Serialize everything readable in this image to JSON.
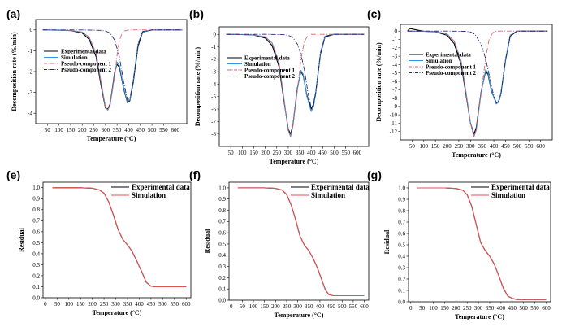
{
  "chart_data": [
    {
      "panel": "(a)",
      "type": "line",
      "xlabel": "Temperature (°C)",
      "ylabel": "Decomposition rate (%/min)",
      "xlim": [
        0,
        650
      ],
      "ylim": [
        -4.5,
        0.5
      ],
      "xticks": [
        50,
        100,
        150,
        200,
        250,
        300,
        350,
        400,
        450,
        500,
        550,
        600
      ],
      "yticks": [
        0,
        -1,
        -2,
        -3,
        -4
      ],
      "legend_position": "left",
      "series": [
        {
          "name": "Experimental data",
          "color": "#000000",
          "dash": "solid",
          "x": [
            30,
            100,
            150,
            200,
            230,
            260,
            280,
            300,
            310,
            320,
            340,
            350,
            360,
            380,
            395,
            405,
            420,
            440,
            460,
            500,
            600,
            630
          ],
          "y": [
            0,
            -0.01,
            -0.03,
            -0.15,
            -0.45,
            -1.3,
            -2.6,
            -3.75,
            -3.8,
            -3.55,
            -2.0,
            -1.65,
            -1.8,
            -2.9,
            -3.5,
            -3.4,
            -2.5,
            -0.8,
            -0.1,
            0,
            0,
            0
          ]
        },
        {
          "name": "Simulation",
          "color": "#3b8fd6",
          "dash": "solid",
          "x": [
            30,
            100,
            150,
            200,
            230,
            260,
            280,
            300,
            310,
            320,
            340,
            350,
            360,
            380,
            395,
            405,
            420,
            440,
            460,
            500,
            600,
            630
          ],
          "y": [
            0,
            -0.01,
            -0.03,
            -0.1,
            -0.35,
            -1.15,
            -2.45,
            -3.7,
            -3.85,
            -3.6,
            -2.1,
            -1.55,
            -1.7,
            -2.85,
            -3.45,
            -3.35,
            -2.4,
            -0.7,
            -0.08,
            0,
            0,
            0
          ]
        },
        {
          "name": "Pseudo-component 1",
          "color": "#e06666",
          "dash": "6,2,1,2",
          "x": [
            30,
            100,
            150,
            200,
            230,
            260,
            280,
            300,
            310,
            320,
            340,
            350,
            360,
            370,
            380,
            400,
            630
          ],
          "y": [
            0,
            -0.01,
            -0.03,
            -0.1,
            -0.35,
            -1.15,
            -2.45,
            -3.7,
            -3.85,
            -3.6,
            -2.2,
            -1.2,
            -0.5,
            -0.2,
            -0.05,
            0,
            0
          ]
        },
        {
          "name": "Pseudo-component 2",
          "color": "#1f2a7a",
          "dash": "6,2,1,2",
          "x": [
            30,
            200,
            280,
            300,
            320,
            340,
            350,
            360,
            380,
            395,
            405,
            420,
            440,
            460,
            500,
            630
          ],
          "y": [
            0,
            0,
            -0.02,
            -0.05,
            -0.15,
            -0.5,
            -0.9,
            -1.3,
            -2.6,
            -3.35,
            -3.3,
            -2.4,
            -0.7,
            -0.08,
            0,
            0
          ]
        }
      ]
    },
    {
      "panel": "(b)",
      "type": "line",
      "xlabel": "Temperature (°C)",
      "ylabel": "Decomposition rate (%/min)",
      "xlim": [
        0,
        650
      ],
      "ylim": [
        -9,
        0.6
      ],
      "xticks": [
        50,
        100,
        150,
        200,
        250,
        300,
        350,
        400,
        450,
        500,
        550,
        600
      ],
      "yticks": [
        0,
        -1,
        -2,
        -3,
        -4,
        -5,
        -6,
        -7,
        -8
      ],
      "legend_position": "left",
      "series": [
        {
          "name": "Experimental data",
          "color": "#000000",
          "dash": "solid",
          "x": [
            30,
            100,
            150,
            200,
            230,
            260,
            280,
            300,
            310,
            320,
            340,
            355,
            365,
            380,
            400,
            410,
            420,
            440,
            460,
            500,
            600,
            630
          ],
          "y": [
            0,
            -0.02,
            -0.06,
            -0.3,
            -0.9,
            -2.6,
            -5.2,
            -7.6,
            -8.0,
            -7.3,
            -4.3,
            -3.0,
            -3.3,
            -4.8,
            -6.0,
            -5.6,
            -4.6,
            -1.6,
            -0.2,
            0,
            0,
            0
          ]
        },
        {
          "name": "Simulation",
          "color": "#3b8fd6",
          "dash": "solid",
          "x": [
            30,
            100,
            150,
            200,
            230,
            260,
            280,
            300,
            310,
            320,
            340,
            355,
            365,
            380,
            400,
            410,
            420,
            440,
            460,
            500,
            600,
            630
          ],
          "y": [
            0,
            -0.02,
            -0.05,
            -0.2,
            -0.7,
            -2.3,
            -5.0,
            -7.7,
            -8.2,
            -7.4,
            -4.4,
            -2.9,
            -3.2,
            -4.9,
            -6.2,
            -5.8,
            -4.7,
            -1.5,
            -0.15,
            0,
            0,
            0
          ]
        },
        {
          "name": "Pseudo-component 1",
          "color": "#e06666",
          "dash": "6,2,1,2",
          "x": [
            30,
            100,
            150,
            200,
            230,
            260,
            280,
            300,
            310,
            320,
            340,
            355,
            370,
            385,
            400,
            630
          ],
          "y": [
            0,
            -0.02,
            -0.05,
            -0.2,
            -0.7,
            -2.3,
            -5.0,
            -7.7,
            -8.2,
            -7.4,
            -4.5,
            -2.0,
            -0.6,
            -0.1,
            0,
            0
          ]
        },
        {
          "name": "Pseudo-component 2",
          "color": "#1f2a7a",
          "dash": "6,2,1,2",
          "x": [
            30,
            200,
            280,
            300,
            320,
            340,
            355,
            370,
            385,
            400,
            410,
            420,
            440,
            460,
            500,
            630
          ],
          "y": [
            0,
            0,
            -0.03,
            -0.08,
            -0.25,
            -0.8,
            -1.6,
            -2.8,
            -4.6,
            -5.9,
            -5.7,
            -4.6,
            -1.5,
            -0.15,
            0,
            0
          ]
        }
      ]
    },
    {
      "panel": "(c)",
      "type": "line",
      "xlabel": "Temperature (°C)",
      "ylabel": "Decomposition rate (%/min)",
      "xlim": [
        0,
        650
      ],
      "ylim": [
        -13,
        0.8
      ],
      "xticks": [
        50,
        100,
        150,
        200,
        250,
        300,
        350,
        400,
        450,
        500,
        550,
        600
      ],
      "yticks": [
        0,
        -1,
        -2,
        -3,
        -4,
        -5,
        -6,
        -7,
        -8,
        -9,
        -10,
        -11,
        -12
      ],
      "legend_position": "left",
      "series": [
        {
          "name": "Experimental data",
          "color": "#000000",
          "dash": "solid",
          "x": [
            30,
            40,
            100,
            150,
            200,
            230,
            260,
            280,
            300,
            315,
            325,
            345,
            365,
            375,
            390,
            410,
            420,
            430,
            450,
            470,
            500,
            600,
            630
          ],
          "y": [
            0,
            0.3,
            -0.02,
            -0.08,
            -0.5,
            -1.5,
            -4.0,
            -7.5,
            -11.0,
            -12.3,
            -11.5,
            -7.3,
            -4.8,
            -5.2,
            -7.2,
            -8.6,
            -8.4,
            -7.5,
            -3.5,
            -0.6,
            0,
            0,
            0
          ]
        },
        {
          "name": "Simulation",
          "color": "#3b8fd6",
          "dash": "solid",
          "x": [
            30,
            100,
            150,
            200,
            230,
            260,
            280,
            300,
            315,
            325,
            345,
            365,
            375,
            390,
            410,
            420,
            430,
            450,
            470,
            500,
            600,
            630
          ],
          "y": [
            0,
            -0.02,
            -0.06,
            -0.35,
            -1.2,
            -3.6,
            -7.2,
            -11.0,
            -12.6,
            -11.8,
            -7.4,
            -4.6,
            -5.0,
            -7.1,
            -8.7,
            -8.5,
            -7.6,
            -3.4,
            -0.5,
            0,
            0,
            0
          ]
        },
        {
          "name": "Pseudo-component 1",
          "color": "#e06666",
          "dash": "6,2,1,2",
          "x": [
            30,
            100,
            150,
            200,
            230,
            260,
            280,
            300,
            315,
            325,
            345,
            365,
            380,
            395,
            410,
            630
          ],
          "y": [
            0,
            -0.02,
            -0.06,
            -0.35,
            -1.2,
            -3.6,
            -7.2,
            -11.0,
            -12.6,
            -11.8,
            -7.6,
            -3.2,
            -1.0,
            -0.2,
            0,
            0
          ]
        },
        {
          "name": "Pseudo-component 2",
          "color": "#1f2a7a",
          "dash": "6,2,1,2",
          "x": [
            30,
            200,
            280,
            300,
            320,
            345,
            365,
            380,
            395,
            410,
            420,
            430,
            450,
            470,
            500,
            630
          ],
          "y": [
            0,
            0,
            -0.03,
            -0.1,
            -0.4,
            -1.6,
            -3.3,
            -5.2,
            -7.2,
            -8.6,
            -8.5,
            -7.6,
            -3.4,
            -0.5,
            0,
            0
          ]
        }
      ]
    },
    {
      "panel": "(e)",
      "type": "line",
      "xlabel": "Temperature (°C)",
      "ylabel": "Residual",
      "xlim": [
        -10,
        620
      ],
      "ylim": [
        0,
        1.05
      ],
      "xticks": [
        0,
        50,
        100,
        150,
        200,
        250,
        300,
        350,
        400,
        450,
        500,
        550,
        600
      ],
      "yticks": [
        0.0,
        0.1,
        0.2,
        0.3,
        0.4,
        0.5,
        0.6,
        0.7,
        0.8,
        0.9,
        1.0
      ],
      "legend_position": "top-right",
      "series": [
        {
          "name": "Experimental data",
          "color": "#000000",
          "dash": "solid",
          "x": [
            30,
            150,
            200,
            230,
            250,
            270,
            290,
            310,
            330,
            350,
            370,
            390,
            410,
            430,
            450,
            470,
            500,
            600
          ],
          "y": [
            1.0,
            1.0,
            0.995,
            0.98,
            0.95,
            0.87,
            0.75,
            0.62,
            0.53,
            0.48,
            0.42,
            0.33,
            0.24,
            0.14,
            0.105,
            0.1,
            0.1,
            0.1
          ]
        },
        {
          "name": "Simulation",
          "color": "#e05252",
          "dash": "solid",
          "x": [
            30,
            150,
            200,
            230,
            250,
            270,
            290,
            310,
            330,
            350,
            370,
            390,
            410,
            430,
            450,
            470,
            500,
            600
          ],
          "y": [
            1.0,
            1.0,
            0.995,
            0.98,
            0.95,
            0.87,
            0.75,
            0.62,
            0.53,
            0.48,
            0.42,
            0.33,
            0.24,
            0.14,
            0.105,
            0.1,
            0.1,
            0.1
          ]
        }
      ]
    },
    {
      "panel": "(f)",
      "type": "line",
      "xlabel": "Temperature (°C)",
      "ylabel": "Residual",
      "xlim": [
        -10,
        620
      ],
      "ylim": [
        0,
        1.05
      ],
      "xticks": [
        0,
        50,
        100,
        150,
        200,
        250,
        300,
        350,
        400,
        450,
        500,
        550,
        600
      ],
      "yticks": [
        0.0,
        0.1,
        0.2,
        0.3,
        0.4,
        0.5,
        0.6,
        0.7,
        0.8,
        0.9,
        1.0
      ],
      "legend_position": "top-right",
      "series": [
        {
          "name": "Experimental data",
          "color": "#000000",
          "dash": "solid",
          "x": [
            30,
            150,
            200,
            230,
            250,
            270,
            290,
            310,
            330,
            350,
            370,
            390,
            410,
            425,
            440,
            460,
            500,
            600
          ],
          "y": [
            1.0,
            1.0,
            0.995,
            0.98,
            0.94,
            0.85,
            0.72,
            0.57,
            0.49,
            0.44,
            0.37,
            0.28,
            0.17,
            0.09,
            0.05,
            0.04,
            0.04,
            0.04
          ]
        },
        {
          "name": "Simulation",
          "color": "#e05252",
          "dash": "solid",
          "x": [
            30,
            150,
            200,
            230,
            250,
            270,
            290,
            310,
            330,
            350,
            370,
            390,
            410,
            425,
            440,
            460,
            500,
            600
          ],
          "y": [
            1.0,
            1.0,
            0.995,
            0.98,
            0.94,
            0.85,
            0.72,
            0.57,
            0.49,
            0.44,
            0.37,
            0.28,
            0.17,
            0.09,
            0.05,
            0.04,
            0.04,
            0.04
          ]
        }
      ]
    },
    {
      "panel": "(g)",
      "type": "line",
      "xlabel": "Temperature (°C)",
      "ylabel": "Residual",
      "xlim": [
        -10,
        620
      ],
      "ylim": [
        0,
        1.05
      ],
      "xticks": [
        0,
        50,
        100,
        150,
        200,
        250,
        300,
        350,
        400,
        450,
        500,
        550,
        600
      ],
      "yticks": [
        0.0,
        0.1,
        0.2,
        0.3,
        0.4,
        0.5,
        0.6,
        0.7,
        0.8,
        0.9,
        1.0
      ],
      "legend_position": "top-right",
      "series": [
        {
          "name": "Experimental data",
          "color": "#000000",
          "dash": "solid",
          "x": [
            30,
            150,
            200,
            230,
            250,
            270,
            290,
            310,
            330,
            350,
            370,
            390,
            410,
            430,
            450,
            470,
            500,
            600
          ],
          "y": [
            1.0,
            1.0,
            0.995,
            0.98,
            0.94,
            0.84,
            0.68,
            0.52,
            0.45,
            0.4,
            0.33,
            0.23,
            0.12,
            0.05,
            0.03,
            0.02,
            0.02,
            0.02
          ]
        },
        {
          "name": "Simulation",
          "color": "#e05252",
          "dash": "solid",
          "x": [
            30,
            150,
            200,
            230,
            250,
            270,
            290,
            310,
            330,
            350,
            370,
            390,
            410,
            430,
            450,
            470,
            500,
            600
          ],
          "y": [
            1.0,
            1.0,
            0.995,
            0.98,
            0.94,
            0.84,
            0.68,
            0.52,
            0.45,
            0.4,
            0.33,
            0.23,
            0.12,
            0.05,
            0.03,
            0.02,
            0.02,
            0.02
          ]
        }
      ]
    }
  ]
}
